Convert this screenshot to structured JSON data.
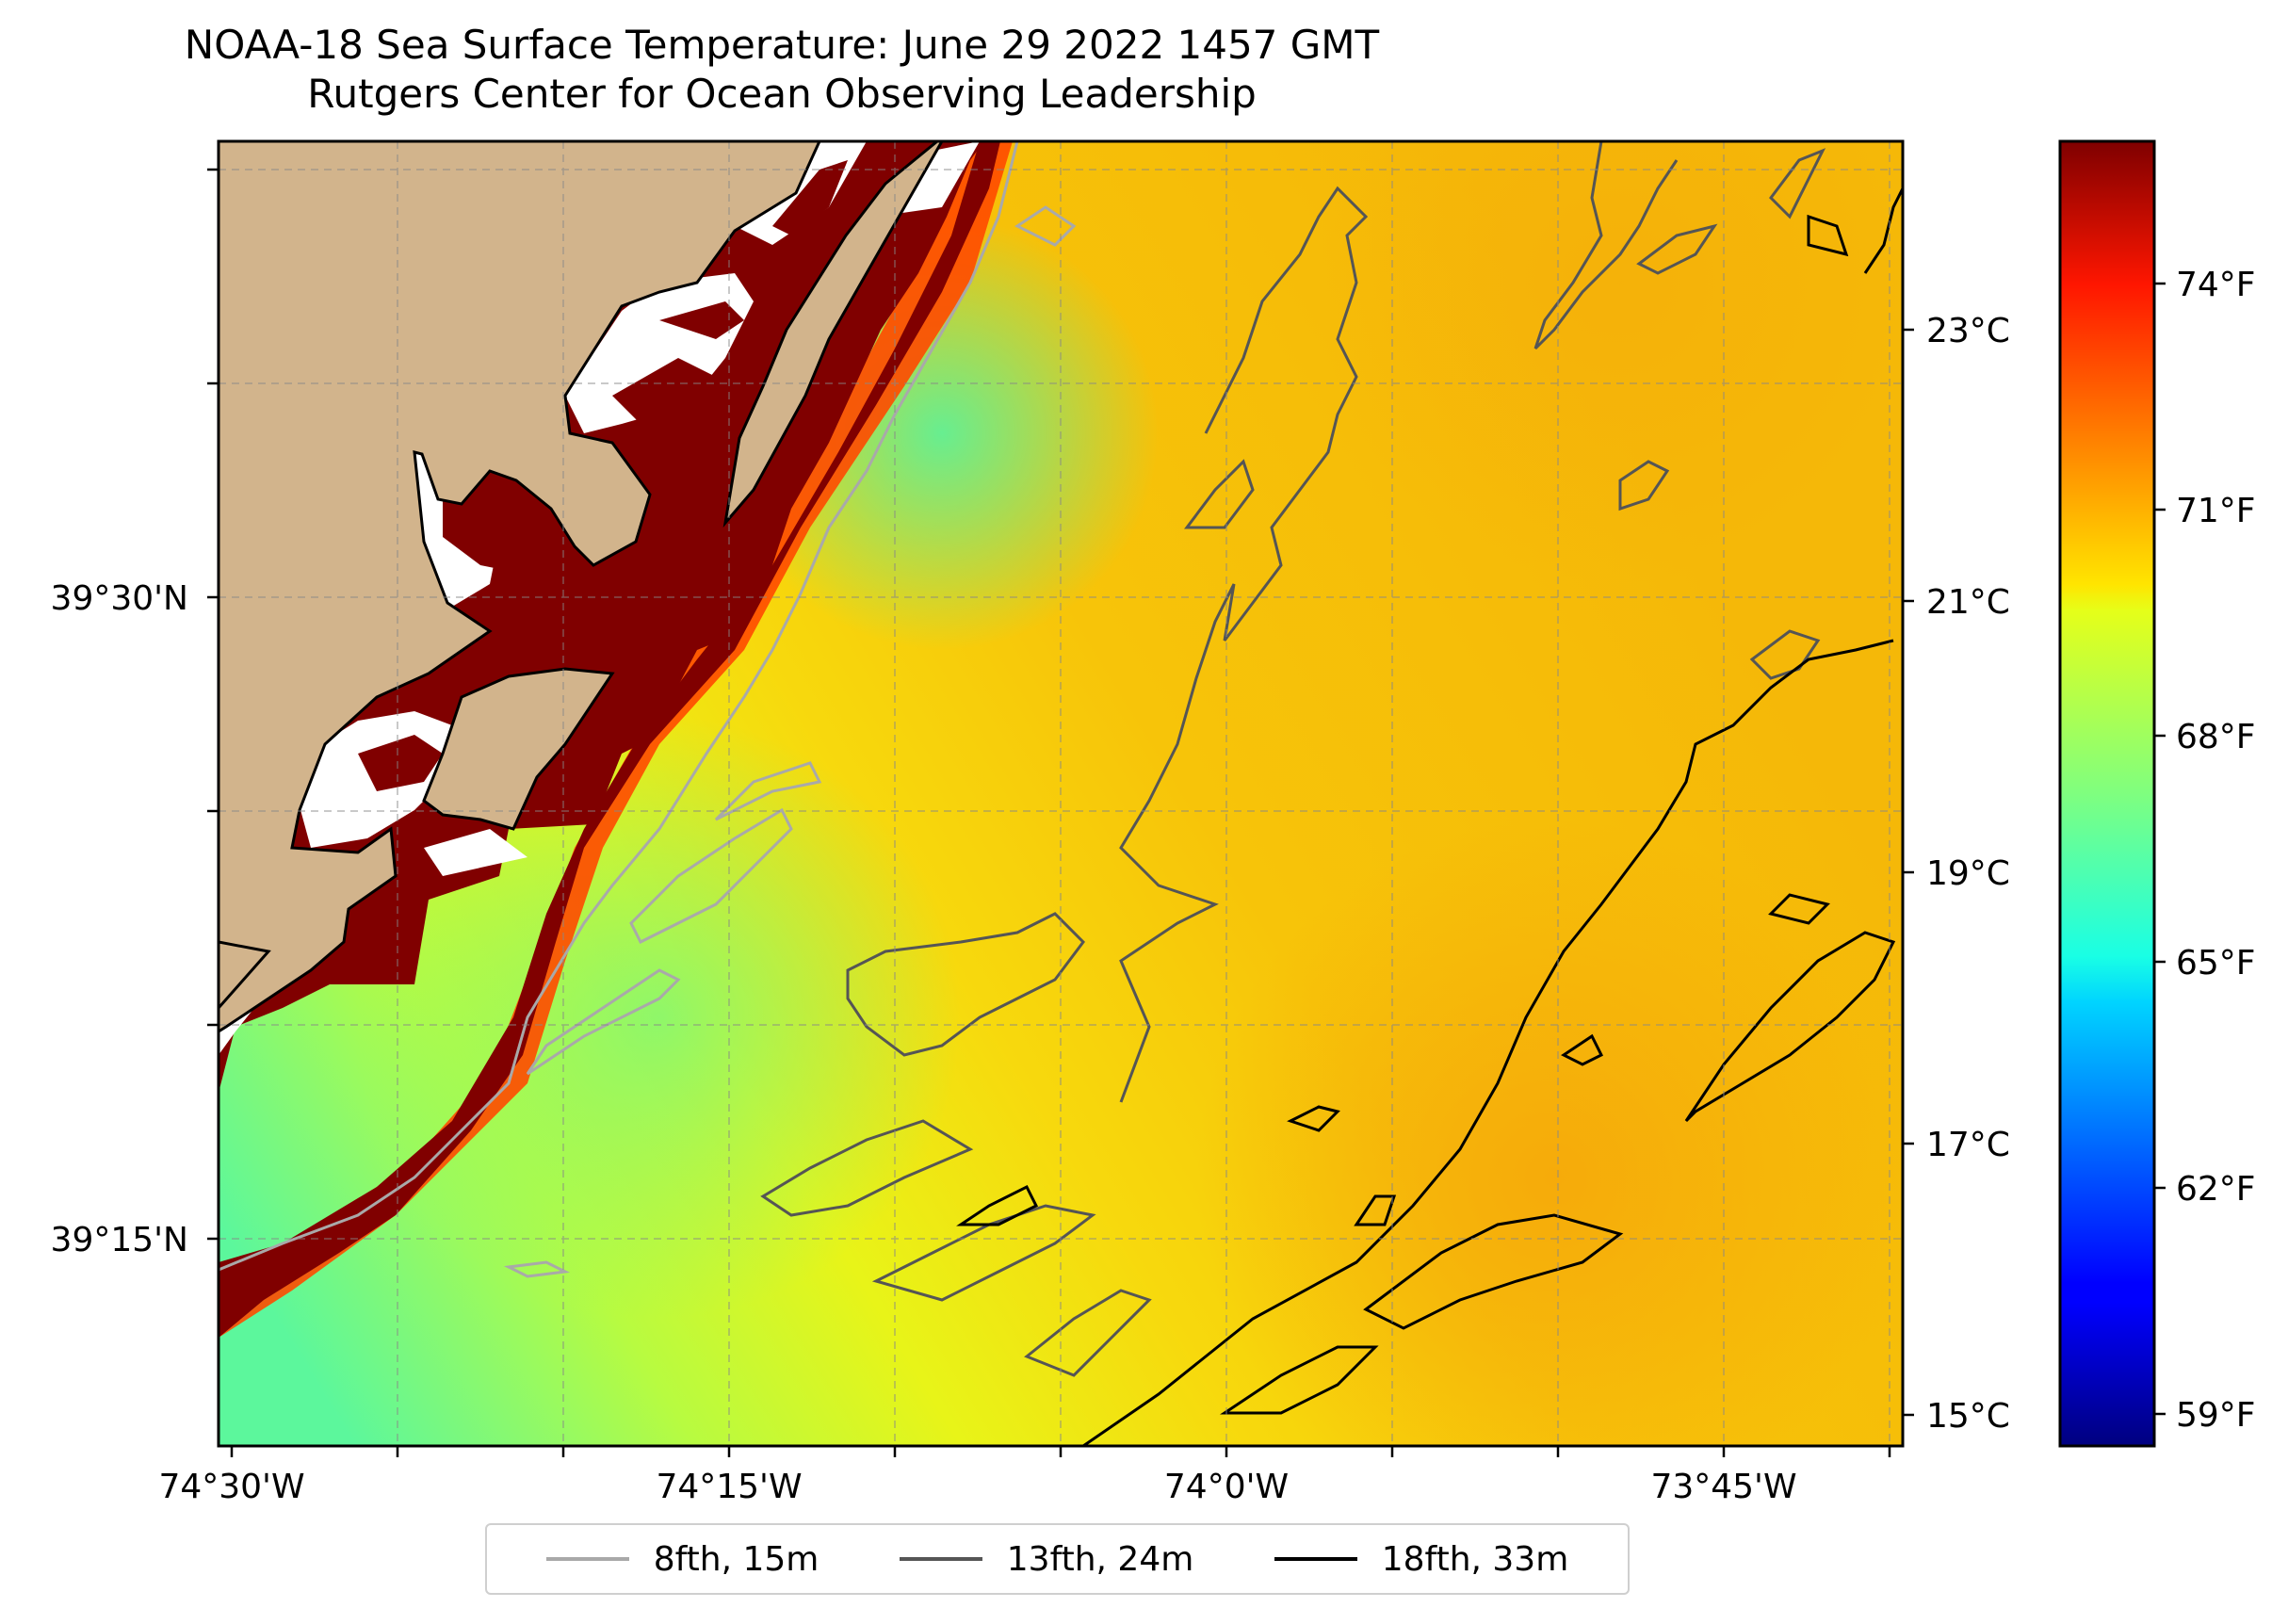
{
  "title": {
    "line1": "NOAA-18 Sea Surface Temperature: June 29 2022 1457 GMT",
    "line2": "Rutgers Center for Ocean Observing Leadership"
  },
  "map": {
    "x_ticks": [
      "74°30'W",
      "74°15'W",
      "74°0'W",
      "73°45'W"
    ],
    "y_ticks": [
      "39°30'N",
      "39°15'N"
    ],
    "colors": {
      "land": "#d2b48c",
      "coast": "#000000",
      "masked_sst": "#800000"
    }
  },
  "colorbar": {
    "celsius_ticks": [
      "15°C",
      "17°C",
      "19°C",
      "21°C",
      "23°C"
    ],
    "fahrenheit_ticks": [
      "59°F",
      "62°F",
      "65°F",
      "68°F",
      "71°F",
      "74°F"
    ],
    "colormap": "jet",
    "range_f": [
      58.5,
      76
    ]
  },
  "legend": {
    "items": [
      {
        "label": "8fth, 15m",
        "color": "#a9a9a9"
      },
      {
        "label": "13fth, 24m",
        "color": "#555555"
      },
      {
        "label": "18fth, 33m",
        "color": "#000000"
      }
    ]
  }
}
